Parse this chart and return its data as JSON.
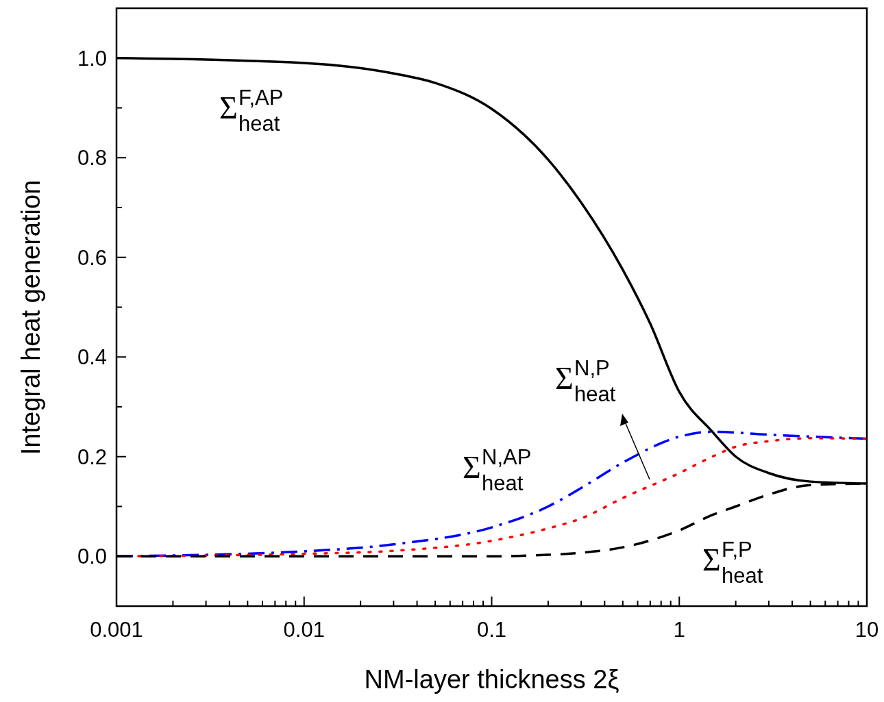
{
  "chart_data": {
    "type": "line",
    "xlabel": "NM-layer thickness 2ξ",
    "ylabel": "Integral heat generation",
    "log": "x",
    "grid": false,
    "xlim": [
      0.001,
      10
    ],
    "ylim": [
      -0.1,
      1.1
    ],
    "xticks": [
      0.001,
      {
        "value": 0.002,
        "label": null
      },
      {
        "value": 0.003,
        "label": null
      },
      {
        "value": 0.004,
        "label": null
      },
      {
        "value": 0.005,
        "label": null
      },
      {
        "value": 0.006,
        "label": null
      },
      {
        "value": 0.007,
        "label": null
      },
      {
        "value": 0.008,
        "label": null
      },
      {
        "value": 0.009,
        "label": null
      },
      0.01,
      {
        "value": 0.02,
        "label": null
      },
      {
        "value": 0.03,
        "label": null
      },
      {
        "value": 0.04,
        "label": null
      },
      {
        "value": 0.05,
        "label": null
      },
      {
        "value": 0.06,
        "label": null
      },
      {
        "value": 0.07,
        "label": null
      },
      {
        "value": 0.08,
        "label": null
      },
      {
        "value": 0.09,
        "label": null
      },
      0.1,
      {
        "value": 0.2,
        "label": null
      },
      {
        "value": 0.3,
        "label": null
      },
      {
        "value": 0.4,
        "label": null
      },
      {
        "value": 0.5,
        "label": null
      },
      {
        "value": 0.6,
        "label": null
      },
      {
        "value": 0.7,
        "label": null
      },
      {
        "value": 0.8,
        "label": null
      },
      {
        "value": 0.9,
        "label": null
      },
      1,
      {
        "value": 2,
        "label": null
      },
      {
        "value": 3,
        "label": null
      },
      {
        "value": 4,
        "label": null
      },
      {
        "value": 5,
        "label": null
      },
      {
        "value": 6,
        "label": null
      },
      {
        "value": 7,
        "label": null
      },
      {
        "value": 8,
        "label": null
      },
      {
        "value": 9,
        "label": null
      },
      10
    ],
    "yticks": [
      {
        "value": -0.1,
        "label": null
      },
      {
        "value": 0,
        "label": "0.0"
      },
      {
        "value": 0.1,
        "label": null
      },
      {
        "value": 0.2,
        "label": "0.2"
      },
      {
        "value": 0.3,
        "label": null
      },
      {
        "value": 0.4,
        "label": "0.4"
      },
      {
        "value": 0.5,
        "label": null
      },
      {
        "value": 0.6,
        "label": "0.6"
      },
      {
        "value": 0.7,
        "label": null
      },
      {
        "value": 0.8,
        "label": "0.8"
      },
      {
        "value": 0.9,
        "label": null
      },
      {
        "value": 1,
        "label": "1.0"
      }
    ],
    "series": [
      {
        "name": "Σ$^{F,AP}$$_{heat}$",
        "color": "#000000",
        "line_style": "solid",
        "x": [
          0.001,
          0.01,
          0.03,
          0.05,
          0.1,
          0.2,
          0.3,
          0.5,
          0.7,
          1,
          1.5,
          2,
          3,
          5,
          10
        ],
        "values": [
          1.0,
          0.99,
          0.969,
          0.95,
          0.898,
          0.796,
          0.71,
          0.575,
          0.467,
          0.33,
          0.25,
          0.2,
          0.167,
          0.15,
          0.146
        ]
      },
      {
        "name": "Σ$^{N,AP}$$_{heat}$",
        "color": "#0000ff",
        "line_style": "dashdot",
        "x": [
          0.001,
          0.01,
          0.03,
          0.1,
          0.2,
          0.3,
          0.5,
          1,
          1.5,
          3,
          10
        ],
        "values": [
          0,
          0.01,
          0.024,
          0.058,
          0.1,
          0.137,
          0.188,
          0.24,
          0.25,
          0.244,
          0.236
        ]
      },
      {
        "name": "Σ$^{N,P}$$_{heat}$",
        "color": "#ff0000",
        "line_style": "dotted",
        "x": [
          0.001,
          0.01,
          0.03,
          0.1,
          0.2,
          0.3,
          0.5,
          1,
          1.5,
          2,
          3,
          5,
          10
        ],
        "values": [
          0,
          0.005,
          0.011,
          0.031,
          0.056,
          0.076,
          0.117,
          0.167,
          0.2,
          0.22,
          0.231,
          0.237,
          0.236
        ]
      },
      {
        "name": "Σ$^{F,P}$$_{heat}$",
        "color": "#000000",
        "line_style": "dashed",
        "x": [
          0.001,
          0.01,
          0.1,
          0.2,
          0.3,
          0.5,
          1,
          1.5,
          2,
          3,
          5,
          10
        ],
        "values": [
          0,
          0,
          0,
          0.003,
          0.007,
          0.018,
          0.052,
          0.083,
          0.1,
          0.124,
          0.143,
          0.146
        ]
      }
    ]
  }
}
